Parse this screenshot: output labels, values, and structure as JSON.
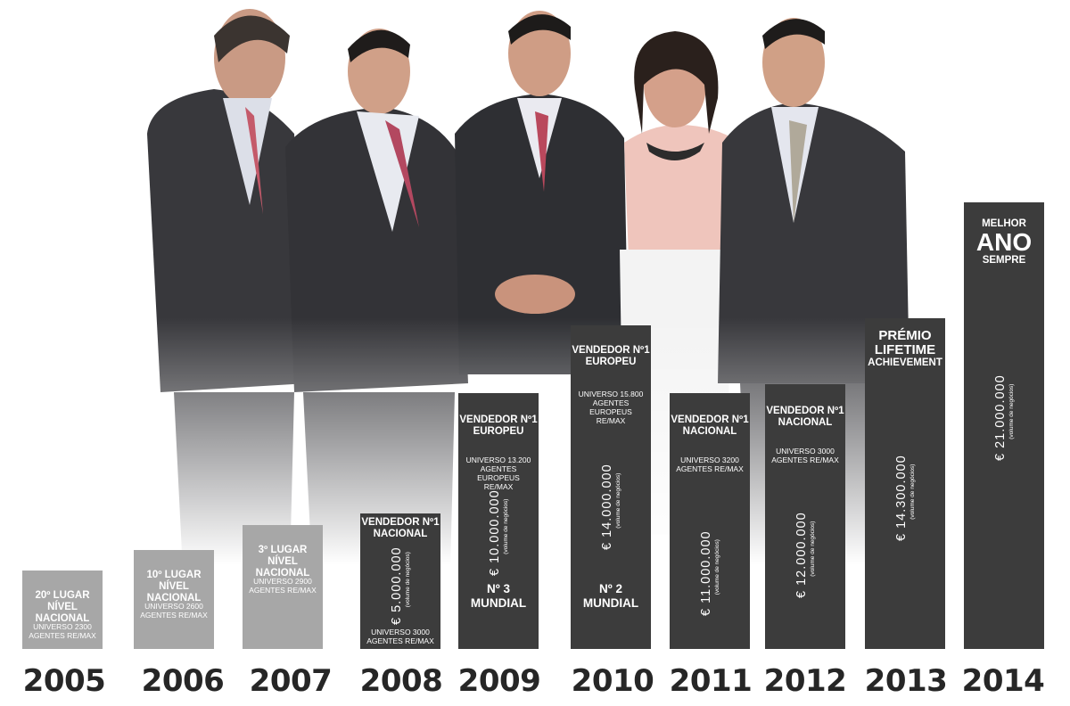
{
  "chart_data": {
    "type": "bar",
    "categories": [
      "2005",
      "2006",
      "2007",
      "2008",
      "2009",
      "2010",
      "2011",
      "2012",
      "2013",
      "2014"
    ],
    "values": [
      null,
      null,
      null,
      5000000,
      10000000,
      14000000,
      11000000,
      12000000,
      14300000,
      21000000
    ],
    "bars": [
      {
        "year": "2005",
        "style": "light",
        "heading": [
          "20º LUGAR",
          "NÍVEL NACIONAL"
        ],
        "universe": [
          "UNIVERSO 2300",
          "AGENTES RE/MAX"
        ],
        "amount": "",
        "amount_caption": "",
        "rank": []
      },
      {
        "year": "2006",
        "style": "light",
        "heading": [
          "10º LUGAR",
          "NÍVEL NACIONAL"
        ],
        "universe": [
          "UNIVERSO 2600",
          "AGENTES RE/MAX"
        ],
        "amount": "",
        "amount_caption": "",
        "rank": []
      },
      {
        "year": "2007",
        "style": "light",
        "heading": [
          "3º LUGAR",
          "NÍVEL NACIONAL"
        ],
        "universe": [
          "UNIVERSO 2900",
          "AGENTES RE/MAX"
        ],
        "amount": "",
        "amount_caption": "",
        "rank": []
      },
      {
        "year": "2008",
        "style": "dark",
        "heading": [
          "VENDEDOR Nº1",
          "NACIONAL"
        ],
        "universe": [
          "UNIVERSO 3000",
          "AGENTES RE/MAX"
        ],
        "amount": "€  5.000.000",
        "amount_caption": "(volume de negócios)",
        "rank": []
      },
      {
        "year": "2009",
        "style": "dark",
        "heading": [
          "VENDEDOR Nº1",
          "EUROPEU"
        ],
        "universe": [
          "UNIVERSO 13.200",
          "AGENTES EUROPEUS",
          "RE/MAX"
        ],
        "amount": "€  10.000.000",
        "amount_caption": "(volume de negócios)",
        "rank": [
          "Nº 3",
          "MUNDIAL"
        ]
      },
      {
        "year": "2010",
        "style": "dark",
        "heading": [
          "VENDEDOR Nº1",
          "EUROPEU"
        ],
        "universe": [
          "UNIVERSO 15.800",
          "AGENTES EUROPEUS",
          "RE/MAX"
        ],
        "amount": "€  14.000.000",
        "amount_caption": "(volume de negócios)",
        "rank": [
          "Nº 2",
          "MUNDIAL"
        ]
      },
      {
        "year": "2011",
        "style": "dark",
        "heading": [
          "VENDEDOR Nº1",
          "NACIONAL"
        ],
        "universe": [
          "UNIVERSO 3200",
          "AGENTES RE/MAX"
        ],
        "amount": "€  11.000.000",
        "amount_caption": "(volume de negócios)",
        "rank": []
      },
      {
        "year": "2012",
        "style": "dark",
        "heading": [
          "VENDEDOR Nº1",
          "NACIONAL"
        ],
        "universe": [
          "UNIVERSO 3000",
          "AGENTES RE/MAX"
        ],
        "amount": "€  12.000.000",
        "amount_caption": "(volume de negócios)",
        "rank": []
      },
      {
        "year": "2013",
        "style": "dark",
        "heading": [
          "PRÉMIO",
          "LIFETIME",
          "ACHIEVEMENT"
        ],
        "universe": [],
        "amount": "€  14.300.000",
        "amount_caption": "(volume de negócios)",
        "rank": []
      },
      {
        "year": "2014",
        "style": "dark",
        "heading": [
          "MELHOR",
          "ANO",
          "SEMPRE"
        ],
        "universe": [],
        "amount": "€  21.000.000",
        "amount_caption": "(volume de negócios)",
        "rank": []
      }
    ]
  },
  "colors": {
    "light_bar": "#a7a7a7",
    "dark_bar": "#3c3c3c",
    "year_text": "#262626"
  }
}
